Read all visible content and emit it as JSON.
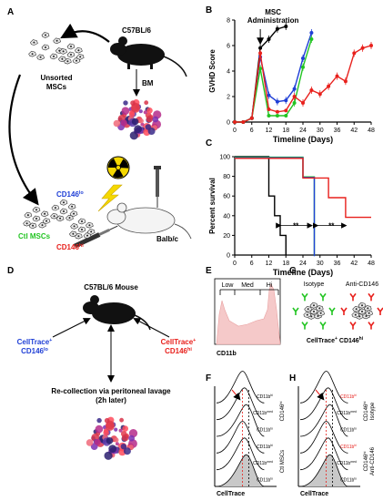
{
  "panel_letters": {
    "A": "A",
    "B": "B",
    "C": "C",
    "D": "D",
    "E": "E",
    "F": "F",
    "G": "G",
    "H": "H"
  },
  "panelA": {
    "mouse_label": "C57BL/6",
    "unsorted_label_line1": "Unsorted",
    "unsorted_label_line2": "MSCs",
    "bm_label": "BM",
    "recipient_label": "Balb/c",
    "cd146lo_label": "CD146",
    "cd146lo_sup": "lo",
    "ctl_label": "Ctl MSCs",
    "cd146hi_label": "CD146",
    "cd146hi_sup": "hi"
  },
  "panelD": {
    "mouse_label": "C57BL/6 Mouse",
    "left_line1": "CellTrace",
    "left_line1_sup": "+",
    "left_line2": "CD146",
    "left_line2_sup": "lo",
    "right_line1": "CellTrace",
    "right_line1_sup": "+",
    "right_line2": "CD146",
    "right_line2_sup": "hi",
    "recollect_line1": "Re-collection via peritoneal lavage",
    "recollect_line2": "(2h later)"
  },
  "panelE": {
    "gate_low": "Low",
    "gate_med": "Med",
    "gate_hi": "Hi",
    "xlabel": "CD11b"
  },
  "panelG": {
    "isotype_label": "Isotype",
    "anti_label": "Anti-CD146",
    "bottom_label": "CellTrace",
    "bottom_sup": "+",
    "bottom_label2": " CD146",
    "bottom_sup2": "hi"
  },
  "panelF": {
    "xlabel": "CellTrace",
    "rows": [
      "CD11b",
      "CD11b",
      "CD11b",
      "CD11b",
      "CD11b",
      "CD11b"
    ],
    "row_sups": [
      "hi",
      "med",
      "lo",
      "hi",
      "med",
      "lo"
    ],
    "group_top": "CD146",
    "group_top_sup": "hi",
    "group_bottom": "Ctl MSCs"
  },
  "panelH": {
    "xlabel": "CellTrace",
    "rows": [
      "CD11b",
      "CD11b",
      "CD11b",
      "CD11b",
      "CD11b",
      "CD11b"
    ],
    "row_sups": [
      "hi",
      "med",
      "lo",
      "hi",
      "med",
      "lo"
    ],
    "group_top_a": "CD146",
    "group_top_a_sup": "hi",
    "group_top_b": "Isotype",
    "group_bottom_a": "CD146",
    "group_bottom_a_sup": "hi",
    "group_bottom_b": "Anti-CD146"
  },
  "chart_data": [
    {
      "type": "line",
      "panel": "B",
      "title": "",
      "annotation": "MSC\nAdministration",
      "xlabel": "Timeline (Days)",
      "ylabel": "GVHD Score",
      "xlim": [
        0,
        48
      ],
      "ylim": [
        0,
        8
      ],
      "xticks": [
        0,
        6,
        12,
        18,
        24,
        30,
        36,
        42,
        48
      ],
      "yticks": [
        0,
        2,
        4,
        6,
        8
      ],
      "series": [
        {
          "color": "#000000",
          "x": [
            0,
            3,
            6,
            9,
            12,
            15,
            18
          ],
          "y": [
            0,
            0,
            0.3,
            5.8,
            6.5,
            7.3,
            7.5
          ]
        },
        {
          "color": "#1f3fd6",
          "x": [
            0,
            3,
            6,
            9,
            12,
            15,
            18,
            21,
            24,
            27
          ],
          "y": [
            0,
            0,
            0.3,
            5.1,
            2.1,
            1.6,
            1.7,
            2.6,
            5.0,
            7.0
          ]
        },
        {
          "color": "#22c422",
          "x": [
            0,
            3,
            6,
            9,
            12,
            15,
            18,
            21,
            24,
            27
          ],
          "y": [
            0,
            0,
            0.3,
            4.2,
            0.5,
            0.5,
            0.5,
            1.5,
            4.3,
            6.5
          ]
        },
        {
          "color": "#e8201c",
          "x": [
            0,
            3,
            6,
            9,
            12,
            15,
            18,
            21,
            24,
            27,
            30,
            33,
            36,
            39,
            42,
            45,
            48
          ],
          "y": [
            0,
            0,
            0.3,
            5.4,
            1.0,
            0.8,
            0.9,
            2.0,
            1.5,
            2.5,
            2.2,
            2.8,
            3.6,
            3.2,
            5.4,
            5.8,
            6.0
          ]
        }
      ]
    },
    {
      "type": "line",
      "panel": "C",
      "title": "",
      "xlabel": "Timeline (Days)",
      "ylabel": "Percent survival",
      "xlim": [
        0,
        48
      ],
      "ylim": [
        0,
        100
      ],
      "xticks": [
        0,
        6,
        12,
        18,
        24,
        30,
        36,
        42,
        48
      ],
      "yticks": [
        0,
        20,
        40,
        60,
        80,
        100
      ],
      "annotations": [
        "**",
        "**"
      ],
      "series": [
        {
          "color": "#000000",
          "steps": [
            [
              0,
              100
            ],
            [
              12,
              100
            ],
            [
              12,
              60
            ],
            [
              14,
              60
            ],
            [
              14,
              40
            ],
            [
              16,
              40
            ],
            [
              16,
              20
            ],
            [
              18,
              20
            ],
            [
              18,
              0
            ]
          ]
        },
        {
          "color": "#22c422",
          "steps": [
            [
              0,
              100
            ],
            [
              24,
              100
            ],
            [
              24,
              80
            ],
            [
              28,
              80
            ],
            [
              28,
              0
            ]
          ]
        },
        {
          "color": "#1f3fd6",
          "steps": [
            [
              0,
              100
            ],
            [
              24,
              100
            ],
            [
              24,
              80
            ],
            [
              28,
              80
            ],
            [
              28,
              0
            ]
          ]
        },
        {
          "color": "#e8201c",
          "steps": [
            [
              0,
              100
            ],
            [
              24,
              100
            ],
            [
              24,
              80
            ],
            [
              33,
              80
            ],
            [
              33,
              60
            ],
            [
              39,
              60
            ],
            [
              39,
              40
            ],
            [
              48,
              40
            ]
          ]
        }
      ]
    }
  ]
}
